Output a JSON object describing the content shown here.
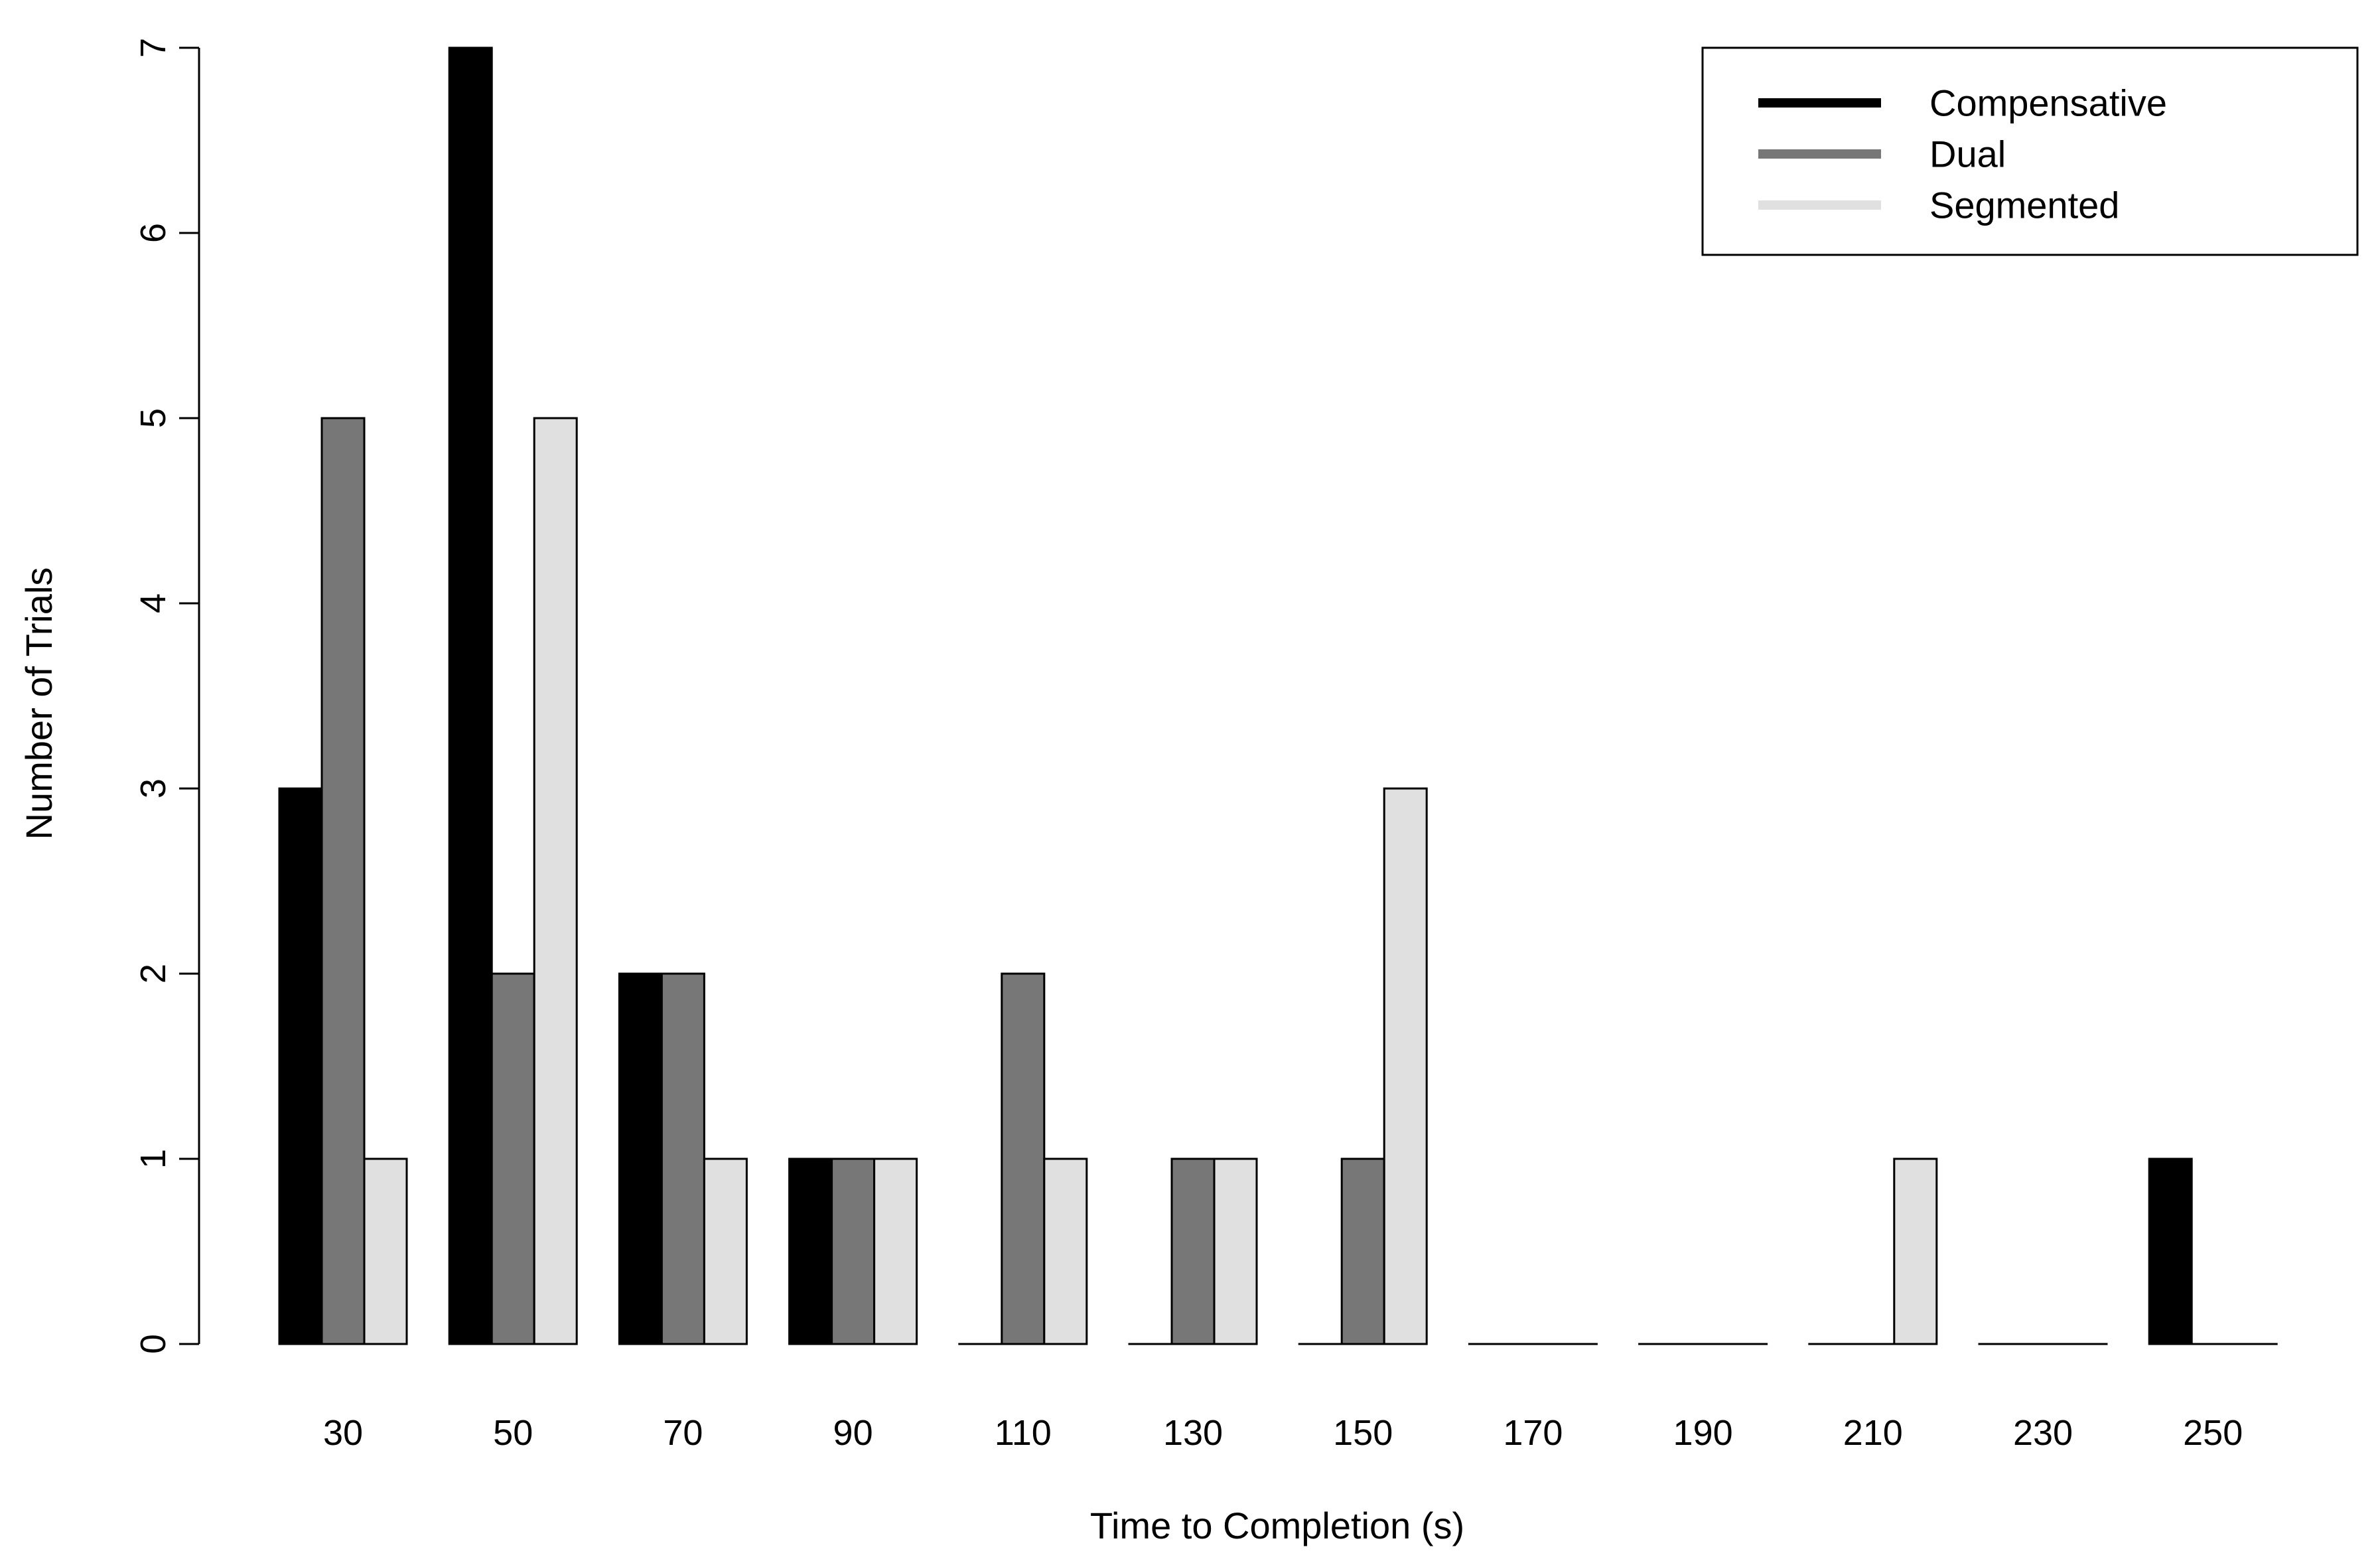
{
  "chart_data": {
    "type": "bar",
    "categories": [
      "30",
      "50",
      "70",
      "90",
      "110",
      "130",
      "150",
      "170",
      "190",
      "210",
      "230",
      "250"
    ],
    "series": [
      {
        "name": "Compensative",
        "color": "#000000",
        "values": [
          3,
          7,
          2,
          1,
          0,
          0,
          0,
          0,
          0,
          0,
          0,
          1
        ]
      },
      {
        "name": "Dual",
        "color": "#777777",
        "values": [
          5,
          2,
          2,
          1,
          2,
          1,
          1,
          0,
          0,
          0,
          0,
          0
        ]
      },
      {
        "name": "Segmented",
        "color": "#e0e0e0",
        "values": [
          1,
          5,
          1,
          1,
          1,
          1,
          3,
          0,
          0,
          1,
          0,
          0
        ]
      }
    ],
    "xlabel": "Time to Completion (s)",
    "ylabel": "Number of Trials",
    "ylim": [
      0,
      7
    ],
    "yticks": [
      "0",
      "1",
      "2",
      "3",
      "4",
      "5",
      "6",
      "7"
    ],
    "grid": false,
    "legend_position": "top-right"
  }
}
